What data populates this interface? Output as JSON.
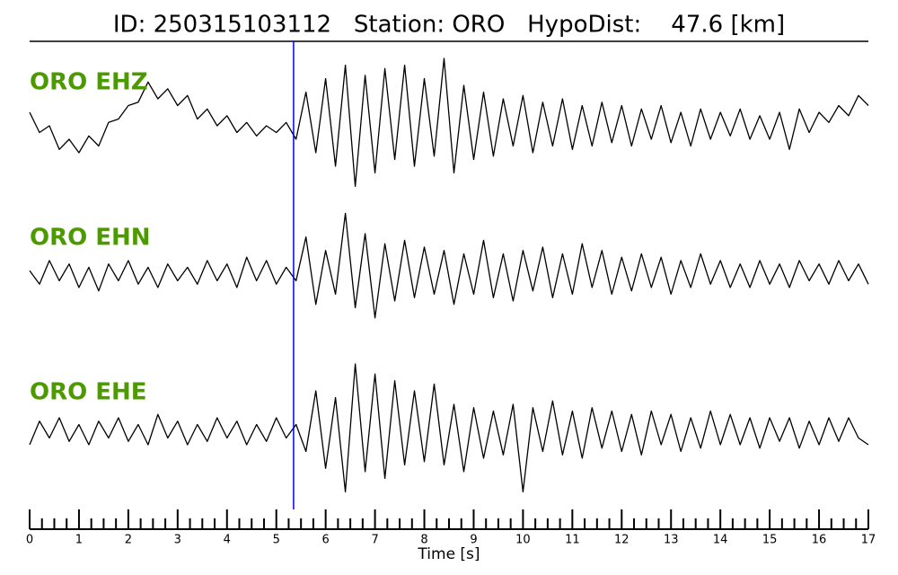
{
  "chart_data": {
    "type": "seismogram",
    "title": "ID: 250315103112   Station: ORO   HypoDist:    47.6 [km]",
    "xlabel": "Time [s]",
    "xlim": [
      0,
      17
    ],
    "xticks": [
      0,
      1,
      2,
      3,
      4,
      5,
      6,
      7,
      8,
      9,
      10,
      11,
      12,
      13,
      14,
      15,
      16,
      17
    ],
    "xminorticks": [
      0.25,
      0.5,
      0.75,
      1.25,
      1.5,
      1.75,
      2.25,
      2.5,
      2.75,
      3.25,
      3.5,
      3.75,
      4.25,
      4.5,
      4.75,
      5.25,
      5.5,
      5.75,
      6.25,
      6.5,
      6.75,
      7.25,
      7.5,
      7.75,
      8.25,
      8.5,
      8.75,
      9.25,
      9.5,
      9.75,
      10.25,
      10.5,
      10.75,
      11.25,
      11.5,
      11.75,
      12.25,
      12.5,
      12.75,
      13.25,
      13.5,
      13.75,
      14.25,
      14.5,
      14.75,
      15.25,
      15.5,
      15.75,
      16.25,
      16.5,
      16.75
    ],
    "ylim": [
      -1,
      1
    ],
    "pick": {
      "time": 5.35,
      "color": "#0000ff"
    },
    "trace_color": "#000000",
    "label_color": "#4c9a00",
    "x": [
      0,
      0.2,
      0.4,
      0.6,
      0.8,
      1,
      1.2,
      1.4,
      1.6,
      1.8,
      2,
      2.2,
      2.4,
      2.6,
      2.8,
      3,
      3.2,
      3.4,
      3.6,
      3.8,
      4,
      4.2,
      4.4,
      4.6,
      4.8,
      5,
      5.2,
      5.4,
      5.6,
      5.8,
      6,
      6.2,
      6.4,
      6.6,
      6.8,
      7,
      7.2,
      7.4,
      7.6,
      7.8,
      8,
      8.2,
      8.4,
      8.6,
      8.8,
      9,
      9.2,
      9.4,
      9.6,
      9.8,
      10,
      10.2,
      10.4,
      10.6,
      10.8,
      11,
      11.2,
      11.4,
      11.6,
      11.8,
      12,
      12.2,
      12.4,
      12.6,
      12.8,
      13,
      13.2,
      13.4,
      13.6,
      13.8,
      14,
      14.2,
      14.4,
      14.6,
      14.8,
      15,
      15.2,
      15.4,
      15.6,
      15.8,
      16,
      16.2,
      16.4,
      16.6,
      16.8,
      17
    ],
    "series": [
      {
        "name": "ORO EHZ",
        "values": [
          0.2,
          -0.1,
          0,
          -0.35,
          -0.2,
          -0.4,
          -0.15,
          -0.3,
          0.05,
          0.1,
          0.3,
          0.35,
          0.65,
          0.4,
          0.55,
          0.3,
          0.45,
          0.1,
          0.25,
          0,
          0.15,
          -0.1,
          0.05,
          -0.15,
          0,
          -0.1,
          0.05,
          -0.2,
          0.5,
          -0.4,
          0.7,
          -0.6,
          0.9,
          -0.9,
          0.75,
          -0.7,
          0.85,
          -0.5,
          0.9,
          -0.6,
          0.7,
          -0.45,
          1,
          -0.7,
          0.6,
          -0.5,
          0.5,
          -0.45,
          0.4,
          -0.3,
          0.45,
          -0.4,
          0.35,
          -0.3,
          0.4,
          -0.35,
          0.3,
          -0.3,
          0.35,
          -0.25,
          0.3,
          -0.3,
          0.25,
          -0.2,
          0.3,
          -0.25,
          0.2,
          -0.3,
          0.25,
          -0.2,
          0.2,
          -0.15,
          0.25,
          -0.2,
          0.15,
          -0.2,
          0.2,
          -0.35,
          0.25,
          -0.1,
          0.2,
          0.05,
          0.3,
          0.15,
          0.45,
          0.3
        ]
      },
      {
        "name": "ORO EHN",
        "values": [
          0.05,
          -0.15,
          0.2,
          -0.1,
          0.15,
          -0.2,
          0.1,
          -0.25,
          0.15,
          -0.1,
          0.2,
          -0.15,
          0.1,
          -0.2,
          0.15,
          -0.1,
          0.1,
          -0.15,
          0.2,
          -0.1,
          0.15,
          -0.2,
          0.25,
          -0.1,
          0.2,
          -0.15,
          0.1,
          -0.1,
          0.55,
          -0.45,
          0.35,
          -0.3,
          0.9,
          -0.5,
          0.6,
          -0.65,
          0.45,
          -0.4,
          0.5,
          -0.35,
          0.4,
          -0.3,
          0.35,
          -0.45,
          0.3,
          -0.3,
          0.5,
          -0.35,
          0.3,
          -0.4,
          0.35,
          -0.25,
          0.4,
          -0.35,
          0.3,
          -0.3,
          0.45,
          -0.2,
          0.35,
          -0.3,
          0.25,
          -0.25,
          0.3,
          -0.2,
          0.25,
          -0.3,
          0.2,
          -0.2,
          0.3,
          -0.15,
          0.2,
          -0.2,
          0.15,
          -0.2,
          0.2,
          -0.15,
          0.15,
          -0.2,
          0.2,
          -0.1,
          0.15,
          -0.15,
          0.2,
          -0.1,
          0.15,
          -0.15
        ]
      },
      {
        "name": "ORO EHE",
        "values": [
          -0.2,
          0.15,
          -0.1,
          0.2,
          -0.15,
          0.1,
          -0.2,
          0.15,
          -0.1,
          0.2,
          -0.15,
          0.1,
          -0.2,
          0.25,
          -0.1,
          0.15,
          -0.2,
          0.1,
          -0.15,
          0.2,
          -0.1,
          0.15,
          -0.2,
          0.1,
          -0.15,
          0.2,
          -0.1,
          0.1,
          -0.3,
          0.6,
          -0.55,
          0.5,
          -0.9,
          1,
          -0.6,
          0.85,
          -0.7,
          0.75,
          -0.5,
          0.6,
          -0.45,
          0.7,
          -0.5,
          0.4,
          -0.6,
          0.35,
          -0.4,
          0.3,
          -0.35,
          0.4,
          -0.9,
          0.35,
          -0.3,
          0.45,
          -0.35,
          0.3,
          -0.4,
          0.35,
          -0.25,
          0.3,
          -0.3,
          0.25,
          -0.35,
          0.3,
          -0.2,
          0.25,
          -0.3,
          0.2,
          -0.25,
          0.3,
          -0.2,
          0.25,
          -0.2,
          0.2,
          -0.25,
          0.2,
          -0.15,
          0.2,
          -0.25,
          0.15,
          -0.2,
          0.2,
          -0.15,
          0.2,
          -0.1,
          -0.2
        ]
      }
    ]
  }
}
